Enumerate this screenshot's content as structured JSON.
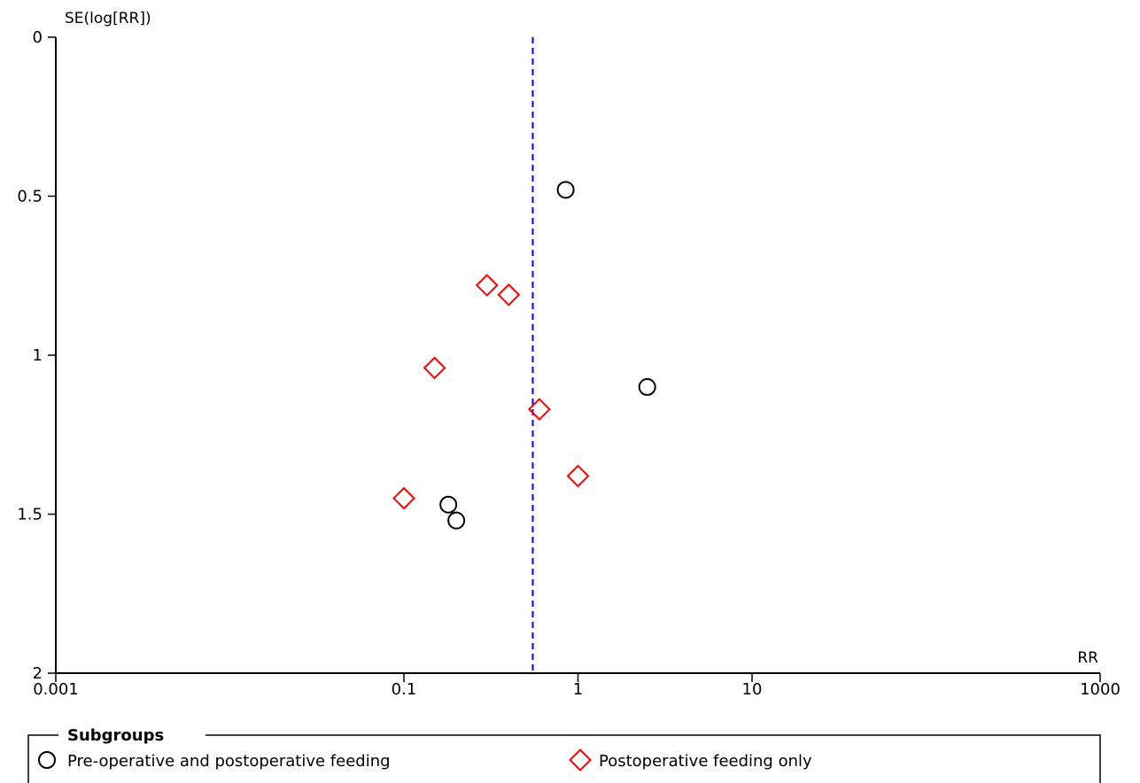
{
  "chart_data": {
    "type": "scatter",
    "title": "",
    "xlabel": "RR",
    "ylabel": "SE(log[RR])",
    "x_scale": "log",
    "xlim": [
      0.001,
      1000
    ],
    "ylim": [
      0,
      2
    ],
    "y_inverted": true,
    "xticks": [
      0.001,
      0.1,
      1,
      10,
      1000
    ],
    "xtick_labels": [
      "0.001",
      "0.1",
      "1",
      "10",
      "1000"
    ],
    "yticks": [
      0,
      0.5,
      1,
      1.5,
      2
    ],
    "ytick_labels": [
      "0",
      "0.5",
      "1",
      "1.5",
      "2"
    ],
    "reference_line": {
      "x": 0.55,
      "style": "dashed",
      "color": "#0000ff"
    },
    "legend": {
      "title": "Subgroups",
      "placement": "bottom"
    },
    "series": [
      {
        "name": "Pre-operative and postoperative feeding",
        "marker": "circle",
        "color": "#000000",
        "x": [
          0.85,
          2.5,
          0.18,
          0.2
        ],
        "y": [
          0.48,
          1.1,
          1.47,
          1.52
        ]
      },
      {
        "name": "Postoperative feeding only",
        "marker": "diamond",
        "color": "#ff0000",
        "x": [
          0.3,
          0.4,
          0.15,
          0.6,
          1.0,
          0.1
        ],
        "y": [
          0.78,
          0.81,
          1.04,
          1.17,
          1.38,
          1.45
        ]
      }
    ]
  }
}
